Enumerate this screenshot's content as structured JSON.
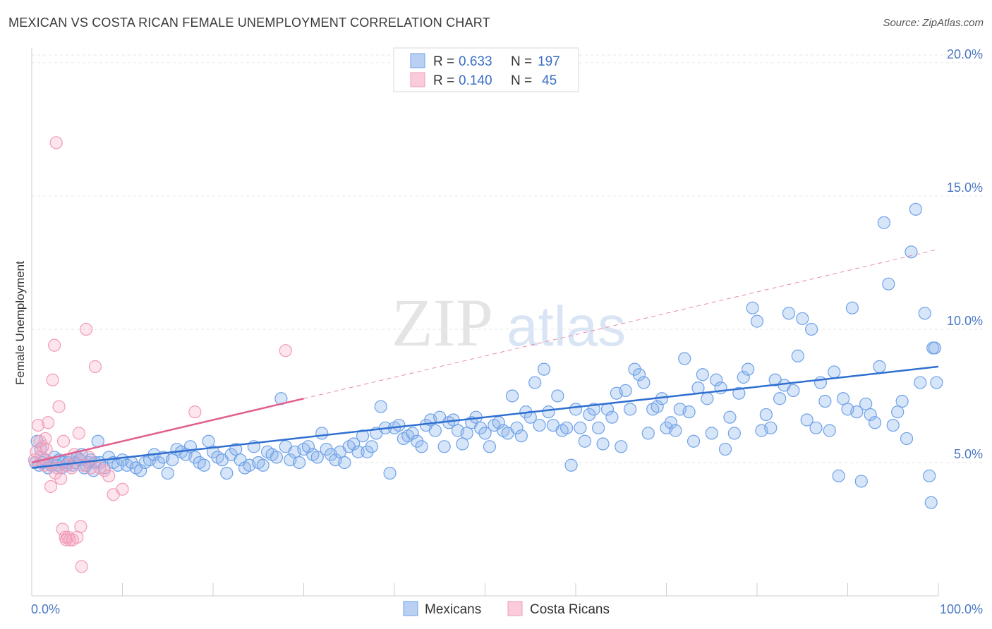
{
  "header": {
    "title": "MEXICAN VS COSTA RICAN FEMALE UNEMPLOYMENT CORRELATION CHART",
    "source": "Source: ZipAtlas.com"
  },
  "watermark": {
    "zip": "ZIP",
    "atlas": "atlas"
  },
  "chart_data": {
    "type": "scatter",
    "ylabel": "Female Unemployment",
    "xlabel": "",
    "xlim": [
      0,
      100
    ],
    "ylim": [
      0,
      20.5
    ],
    "x_tick_labels": [
      {
        "value": 0,
        "label": "0.0%"
      },
      {
        "value": 100,
        "label": "100.0%"
      }
    ],
    "y_ticks": [
      {
        "value": 5,
        "label": "5.0%"
      },
      {
        "value": 10,
        "label": "10.0%"
      },
      {
        "value": 15,
        "label": "15.0%"
      },
      {
        "value": 20,
        "label": "20.0%"
      }
    ],
    "grid": true,
    "legend_position": "top-center",
    "colors": {
      "Mexicans": "#6fa1e8",
      "Costa Ricans": "#f19bb8",
      "Mexicans_line": "#2f6fd1",
      "Costa Ricans_line": "#e0608f"
    },
    "series": [
      {
        "name": "Mexicans",
        "R": "0.633",
        "N": "197",
        "trend": {
          "x0": 0,
          "y0": 4.8,
          "x1": 100,
          "y1": 8.6,
          "style": "solid"
        },
        "points": [
          [
            0.4,
            5.0
          ],
          [
            0.6,
            5.8
          ],
          [
            0.8,
            4.9
          ],
          [
            1.0,
            5.5
          ],
          [
            1.2,
            5.0
          ],
          [
            1.5,
            5.1
          ],
          [
            1.8,
            4.8
          ],
          [
            2.0,
            5.0
          ],
          [
            2.2,
            4.9
          ],
          [
            2.5,
            5.2
          ],
          [
            2.8,
            4.9
          ],
          [
            3.0,
            5.1
          ],
          [
            3.3,
            4.8
          ],
          [
            3.5,
            5.0
          ],
          [
            3.8,
            4.9
          ],
          [
            4.0,
            5.0
          ],
          [
            4.2,
            5.1
          ],
          [
            4.5,
            4.9
          ],
          [
            4.8,
            5.0
          ],
          [
            5.0,
            5.2
          ],
          [
            5.3,
            5.1
          ],
          [
            5.5,
            5.3
          ],
          [
            5.8,
            4.8
          ],
          [
            6.0,
            4.9
          ],
          [
            6.3,
            5.0
          ],
          [
            6.5,
            5.1
          ],
          [
            6.8,
            4.7
          ],
          [
            7.0,
            5.0
          ],
          [
            7.3,
            5.8
          ],
          [
            7.5,
            5.0
          ],
          [
            8.0,
            4.8
          ],
          [
            8.5,
            5.2
          ],
          [
            9.0,
            5.0
          ],
          [
            9.5,
            4.9
          ],
          [
            10.0,
            5.1
          ],
          [
            10.5,
            4.9
          ],
          [
            11.0,
            5.0
          ],
          [
            11.5,
            4.8
          ],
          [
            12.0,
            4.7
          ],
          [
            12.5,
            5.0
          ],
          [
            13.0,
            5.1
          ],
          [
            13.5,
            5.3
          ],
          [
            14.0,
            5.0
          ],
          [
            14.5,
            5.2
          ],
          [
            15.0,
            4.6
          ],
          [
            15.5,
            5.1
          ],
          [
            16.0,
            5.5
          ],
          [
            16.5,
            5.4
          ],
          [
            17.0,
            5.3
          ],
          [
            17.5,
            5.6
          ],
          [
            18.0,
            5.2
          ],
          [
            18.5,
            5.0
          ],
          [
            19.0,
            4.9
          ],
          [
            19.5,
            5.8
          ],
          [
            20.0,
            5.4
          ],
          [
            20.5,
            5.2
          ],
          [
            21.0,
            5.1
          ],
          [
            21.5,
            4.6
          ],
          [
            22.0,
            5.3
          ],
          [
            22.5,
            5.5
          ],
          [
            23.0,
            5.1
          ],
          [
            23.5,
            4.8
          ],
          [
            24.0,
            4.9
          ],
          [
            24.5,
            5.6
          ],
          [
            25.0,
            5.0
          ],
          [
            25.5,
            4.9
          ],
          [
            26.0,
            5.4
          ],
          [
            26.5,
            5.3
          ],
          [
            27.0,
            5.2
          ],
          [
            27.5,
            7.4
          ],
          [
            28.0,
            5.6
          ],
          [
            28.5,
            5.1
          ],
          [
            29.0,
            5.4
          ],
          [
            29.5,
            5.0
          ],
          [
            30.0,
            5.5
          ],
          [
            30.5,
            5.6
          ],
          [
            31.0,
            5.3
          ],
          [
            31.5,
            5.2
          ],
          [
            32.0,
            6.1
          ],
          [
            32.5,
            5.5
          ],
          [
            33.0,
            5.3
          ],
          [
            33.5,
            5.1
          ],
          [
            34.0,
            5.4
          ],
          [
            34.5,
            5.0
          ],
          [
            35.0,
            5.6
          ],
          [
            35.5,
            5.7
          ],
          [
            36.0,
            5.4
          ],
          [
            36.5,
            6.0
          ],
          [
            37.0,
            5.4
          ],
          [
            37.5,
            5.6
          ],
          [
            38.0,
            6.1
          ],
          [
            38.5,
            7.1
          ],
          [
            39.0,
            6.3
          ],
          [
            39.5,
            4.6
          ],
          [
            40.0,
            6.3
          ],
          [
            40.5,
            6.4
          ],
          [
            41.0,
            5.9
          ],
          [
            41.5,
            6.0
          ],
          [
            42.0,
            6.1
          ],
          [
            42.5,
            5.8
          ],
          [
            43.0,
            5.6
          ],
          [
            43.5,
            6.4
          ],
          [
            44.0,
            6.6
          ],
          [
            44.5,
            6.2
          ],
          [
            45.0,
            6.7
          ],
          [
            45.5,
            5.6
          ],
          [
            46.0,
            6.5
          ],
          [
            46.5,
            6.6
          ],
          [
            47.0,
            6.2
          ],
          [
            47.5,
            5.7
          ],
          [
            48.0,
            6.1
          ],
          [
            48.5,
            6.5
          ],
          [
            49.0,
            6.7
          ],
          [
            49.5,
            6.3
          ],
          [
            50.0,
            6.1
          ],
          [
            50.5,
            5.6
          ],
          [
            51.0,
            6.4
          ],
          [
            51.5,
            6.5
          ],
          [
            52.0,
            6.2
          ],
          [
            52.5,
            6.1
          ],
          [
            53.0,
            7.5
          ],
          [
            53.5,
            6.3
          ],
          [
            54.0,
            6.0
          ],
          [
            54.5,
            6.9
          ],
          [
            55.0,
            6.7
          ],
          [
            55.5,
            8.0
          ],
          [
            56.0,
            6.4
          ],
          [
            56.5,
            8.5
          ],
          [
            57.0,
            6.9
          ],
          [
            57.5,
            6.4
          ],
          [
            58.0,
            7.5
          ],
          [
            58.5,
            6.2
          ],
          [
            59.0,
            6.3
          ],
          [
            59.5,
            4.9
          ],
          [
            60.0,
            7.0
          ],
          [
            60.5,
            6.3
          ],
          [
            61.0,
            5.8
          ],
          [
            61.5,
            6.8
          ],
          [
            62.0,
            7.0
          ],
          [
            62.5,
            6.3
          ],
          [
            63.0,
            5.7
          ],
          [
            63.5,
            7.0
          ],
          [
            64.0,
            6.7
          ],
          [
            64.5,
            7.6
          ],
          [
            65.0,
            5.6
          ],
          [
            65.5,
            7.7
          ],
          [
            66.0,
            7.0
          ],
          [
            66.5,
            8.5
          ],
          [
            67.0,
            8.3
          ],
          [
            67.5,
            8.0
          ],
          [
            68.0,
            6.1
          ],
          [
            68.5,
            7.0
          ],
          [
            69.0,
            7.1
          ],
          [
            69.5,
            7.4
          ],
          [
            70.0,
            6.3
          ],
          [
            70.5,
            6.5
          ],
          [
            71.0,
            6.2
          ],
          [
            71.5,
            7.0
          ],
          [
            72.0,
            8.9
          ],
          [
            72.5,
            6.9
          ],
          [
            73.0,
            5.8
          ],
          [
            73.5,
            7.8
          ],
          [
            74.0,
            8.3
          ],
          [
            74.5,
            7.4
          ],
          [
            75.0,
            6.1
          ],
          [
            75.5,
            8.1
          ],
          [
            76.0,
            7.8
          ],
          [
            76.5,
            5.5
          ],
          [
            77.0,
            6.7
          ],
          [
            77.5,
            6.1
          ],
          [
            78.0,
            7.6
          ],
          [
            78.5,
            8.2
          ],
          [
            79.0,
            8.5
          ],
          [
            79.5,
            10.8
          ],
          [
            80.0,
            10.3
          ],
          [
            80.5,
            6.2
          ],
          [
            81.0,
            6.8
          ],
          [
            81.5,
            6.3
          ],
          [
            82.0,
            8.1
          ],
          [
            82.5,
            7.4
          ],
          [
            83.0,
            7.9
          ],
          [
            83.5,
            10.6
          ],
          [
            84.0,
            7.7
          ],
          [
            84.5,
            9.0
          ],
          [
            85.0,
            10.4
          ],
          [
            85.5,
            6.6
          ],
          [
            86.0,
            10.0
          ],
          [
            86.5,
            6.3
          ],
          [
            87.0,
            8.0
          ],
          [
            87.5,
            7.3
          ],
          [
            88.0,
            6.2
          ],
          [
            88.5,
            8.4
          ],
          [
            89.0,
            4.5
          ],
          [
            89.5,
            7.4
          ],
          [
            90.0,
            7.0
          ],
          [
            90.5,
            10.8
          ],
          [
            91.0,
            6.9
          ],
          [
            91.5,
            4.3
          ],
          [
            92.0,
            7.2
          ],
          [
            92.5,
            6.8
          ],
          [
            93.0,
            6.5
          ],
          [
            93.5,
            8.6
          ],
          [
            94.0,
            14.0
          ],
          [
            94.5,
            11.7
          ],
          [
            95.0,
            6.4
          ],
          [
            95.5,
            6.9
          ],
          [
            96.0,
            7.3
          ],
          [
            96.5,
            5.9
          ],
          [
            97.0,
            12.9
          ],
          [
            97.5,
            14.5
          ],
          [
            98.0,
            8.0
          ],
          [
            98.5,
            10.6
          ],
          [
            99.0,
            4.5
          ],
          [
            99.2,
            3.5
          ],
          [
            99.4,
            9.3
          ],
          [
            99.6,
            9.3
          ],
          [
            99.8,
            8.0
          ]
        ]
      },
      {
        "name": "Costa Ricans",
        "R": "0.140",
        "N": "45",
        "trend_solid": {
          "x0": 0,
          "y0": 5.0,
          "x1": 30,
          "y1": 7.4
        },
        "trend_dashed": {
          "x0": 30,
          "y0": 7.4,
          "x1": 100,
          "y1": 13.0
        },
        "points": [
          [
            0.3,
            5.1
          ],
          [
            0.5,
            5.4
          ],
          [
            0.7,
            6.4
          ],
          [
            0.9,
            5.8
          ],
          [
            1.0,
            5.2
          ],
          [
            1.2,
            5.6
          ],
          [
            1.4,
            4.9
          ],
          [
            1.5,
            5.9
          ],
          [
            1.6,
            5.5
          ],
          [
            1.8,
            6.5
          ],
          [
            2.0,
            5.0
          ],
          [
            2.1,
            4.1
          ],
          [
            2.3,
            8.1
          ],
          [
            2.5,
            9.4
          ],
          [
            2.6,
            4.6
          ],
          [
            2.8,
            4.8
          ],
          [
            3.0,
            7.1
          ],
          [
            3.2,
            4.4
          ],
          [
            3.4,
            2.5
          ],
          [
            3.5,
            5.8
          ],
          [
            3.7,
            2.2
          ],
          [
            3.8,
            2.1
          ],
          [
            4.0,
            2.2
          ],
          [
            4.2,
            2.1
          ],
          [
            4.4,
            4.8
          ],
          [
            4.5,
            2.1
          ],
          [
            4.7,
            5.3
          ],
          [
            5.0,
            2.2
          ],
          [
            5.2,
            6.1
          ],
          [
            5.4,
            2.6
          ],
          [
            5.5,
            1.1
          ],
          [
            5.7,
            4.9
          ],
          [
            6.0,
            10.0
          ],
          [
            6.3,
            5.2
          ],
          [
            6.5,
            4.8
          ],
          [
            7.0,
            8.6
          ],
          [
            7.5,
            4.8
          ],
          [
            8.0,
            4.7
          ],
          [
            8.5,
            4.5
          ],
          [
            9.0,
            3.8
          ],
          [
            10.0,
            4.0
          ],
          [
            2.7,
            17.0
          ],
          [
            3.9,
            4.9
          ],
          [
            18.0,
            6.9
          ],
          [
            28.0,
            9.2
          ]
        ]
      }
    ]
  },
  "legend": {
    "r_label": "R =",
    "n_label": "N =",
    "bottom_items": [
      "Mexicans",
      "Costa Ricans"
    ]
  }
}
